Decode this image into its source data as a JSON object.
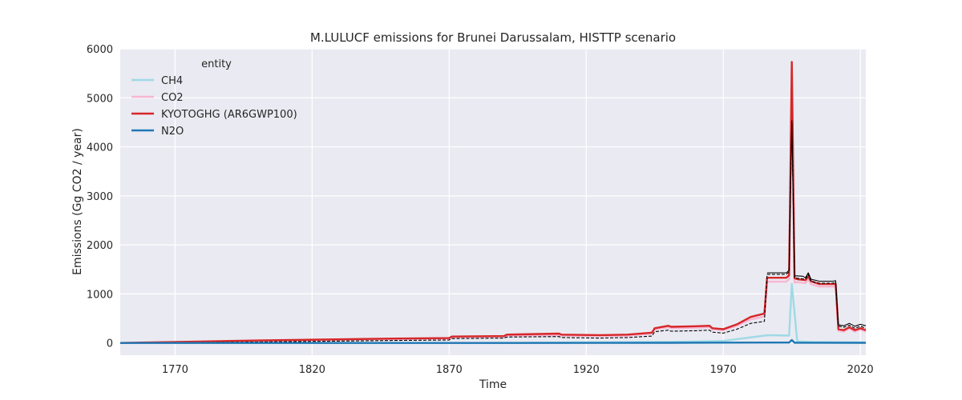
{
  "chart_data": {
    "type": "line",
    "title": "M.LULUCF emissions for Brunei Darussalam, HISTTP scenario",
    "xlabel": "Time",
    "ylabel": "Emissions (Gg CO2 / year)",
    "xlim": [
      1750,
      2022
    ],
    "ylim": [
      -250,
      6000
    ],
    "xticks": [
      1770,
      1820,
      1870,
      1920,
      1970,
      2020
    ],
    "yticks": [
      0,
      1000,
      2000,
      3000,
      4000,
      5000,
      6000
    ],
    "grid": true,
    "legend": {
      "title": "entity",
      "placement": "top-left"
    },
    "series": [
      {
        "name": "CH4",
        "color": "#9edae5",
        "style": "solid",
        "x": [
          1750,
          1880,
          1890,
          1950,
          1970,
          1985,
          1987,
          1994,
          1995,
          1997,
          2002,
          2012,
          2022
        ],
        "y": [
          0,
          0,
          2,
          20,
          40,
          150,
          160,
          150,
          1200,
          30,
          20,
          15,
          10
        ]
      },
      {
        "name": "CO2",
        "color": "#f7b6d2",
        "style": "solid",
        "x": [
          1750,
          1800,
          1850,
          1870,
          1871,
          1890,
          1891,
          1910,
          1911,
          1925,
          1935,
          1944,
          1945,
          1950,
          1951,
          1960,
          1965,
          1966,
          1970,
          1975,
          1980,
          1985,
          1986,
          1993,
          1994,
          1995,
          1996,
          1997,
          2000,
          2001,
          2002,
          2005,
          2010,
          2011,
          2012,
          2014,
          2016,
          2018,
          2020,
          2022
        ],
        "y": [
          0,
          40,
          80,
          90,
          120,
          130,
          150,
          160,
          150,
          140,
          150,
          190,
          280,
          320,
          300,
          310,
          320,
          280,
          260,
          350,
          480,
          540,
          1250,
          1250,
          1300,
          5600,
          1230,
          1240,
          1220,
          1300,
          1200,
          1150,
          1150,
          1150,
          250,
          230,
          300,
          230,
          280,
          230
        ]
      },
      {
        "name": "KYOTOGHG (AR6GWP100)",
        "color": "#d62728",
        "style": "solid",
        "x": [
          1750,
          1800,
          1850,
          1870,
          1871,
          1890,
          1891,
          1910,
          1911,
          1925,
          1935,
          1944,
          1945,
          1950,
          1951,
          1960,
          1965,
          1966,
          1970,
          1975,
          1980,
          1985,
          1986,
          1993,
          1994,
          1995,
          1996,
          1997,
          2000,
          2001,
          2002,
          2005,
          2010,
          2011,
          2012,
          2014,
          2016,
          2018,
          2020,
          2022
        ],
        "y": [
          0,
          50,
          90,
          100,
          130,
          140,
          170,
          190,
          170,
          160,
          170,
          210,
          300,
          350,
          330,
          340,
          350,
          300,
          280,
          380,
          530,
          600,
          1330,
          1330,
          1380,
          5730,
          1320,
          1300,
          1280,
          1360,
          1260,
          1200,
          1200,
          1200,
          280,
          260,
          320,
          260,
          300,
          260
        ]
      },
      {
        "name": "N2O",
        "color": "#1f77b4",
        "style": "solid",
        "x": [
          1750,
          1880,
          1950,
          1985,
          1994,
          1995,
          1996,
          2022
        ],
        "y": [
          0,
          0,
          3,
          8,
          8,
          60,
          5,
          3
        ]
      },
      {
        "name": "",
        "color": "#000000",
        "style": "solid",
        "x": [
          1986,
          1993,
          1994,
          1995,
          1996,
          1999,
          2000,
          2001,
          2002,
          2005,
          2010,
          2011,
          2012,
          2014,
          2016,
          2018,
          2020,
          2022
        ],
        "y": [
          1430,
          1430,
          1480,
          4530,
          1370,
          1360,
          1330,
          1430,
          1300,
          1260,
          1260,
          1270,
          370,
          350,
          400,
          340,
          380,
          350
        ]
      },
      {
        "name": "",
        "color": "#000000",
        "style": "dashed",
        "x": [
          1750,
          1800,
          1850,
          1870,
          1871,
          1890,
          1891,
          1910,
          1911,
          1925,
          1935,
          1944,
          1945,
          1950,
          1951,
          1960,
          1965,
          1966,
          1970,
          1975,
          1980,
          1985,
          1986,
          1993,
          1994,
          1995,
          1996,
          1997,
          2000,
          2001,
          2002,
          2005,
          2010,
          2011,
          2012,
          2014,
          2016,
          2018,
          2020,
          2022
        ],
        "y": [
          0,
          20,
          50,
          60,
          90,
          100,
          120,
          130,
          110,
          100,
          110,
          140,
          230,
          260,
          240,
          250,
          260,
          220,
          200,
          280,
          400,
          440,
          1400,
          1400,
          1450,
          4470,
          1330,
          1320,
          1300,
          1400,
          1260,
          1220,
          1220,
          1230,
          340,
          320,
          360,
          300,
          340,
          300
        ]
      }
    ]
  }
}
